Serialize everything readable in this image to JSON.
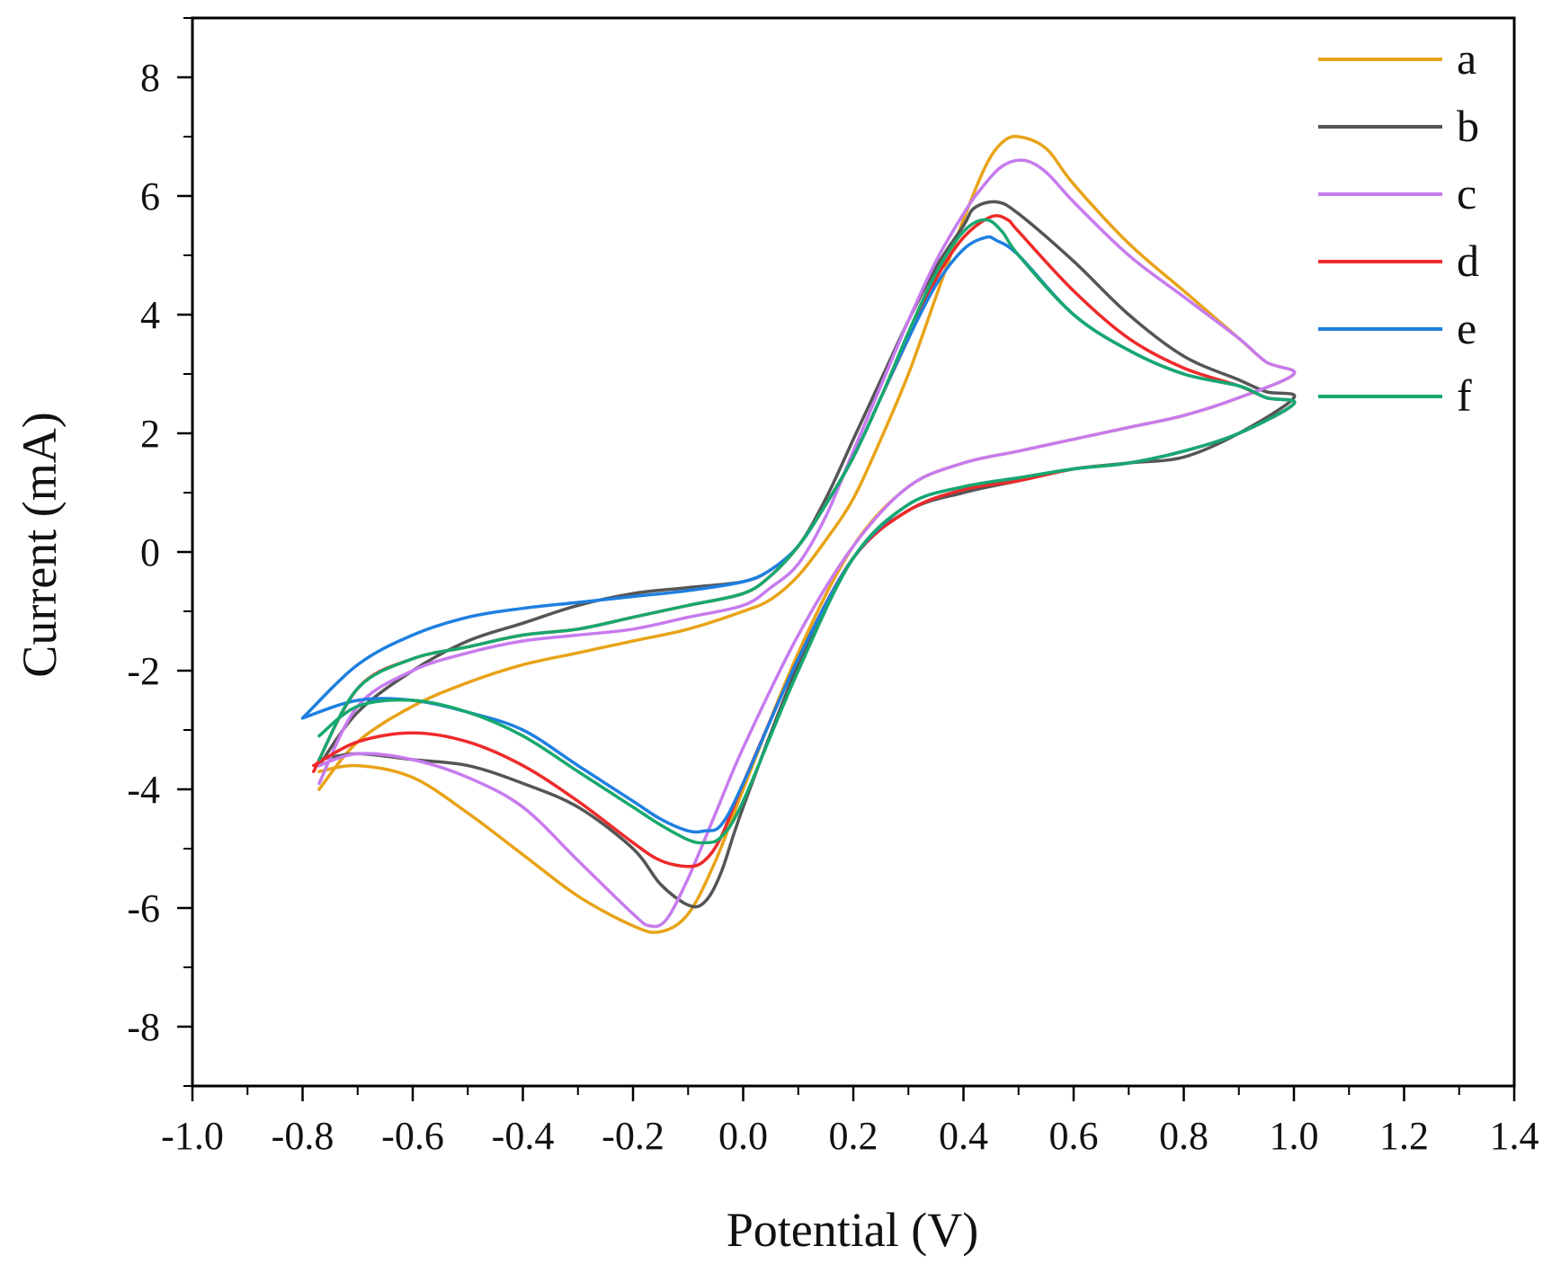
{
  "chart_data": {
    "type": "line",
    "title": "",
    "xlabel": "Potential (V)",
    "ylabel": "Current (mA)",
    "xlim": [
      -1.0,
      1.4
    ],
    "ylim": [
      -9.0,
      9.0
    ],
    "x_ticks": [
      -1.0,
      -0.8,
      -0.6,
      -0.4,
      -0.2,
      0.0,
      0.2,
      0.4,
      0.6,
      0.8,
      1.0,
      1.2,
      1.4
    ],
    "x_tick_labels": [
      "-1.0",
      "-0.8",
      "-0.6",
      "-0.4",
      "-0.2",
      "0.0",
      "0.2",
      "0.4",
      "0.6",
      "0.8",
      "1.0",
      "1.2",
      "1.4"
    ],
    "y_ticks": [
      -8,
      -6,
      -4,
      -2,
      0,
      2,
      4,
      6,
      8
    ],
    "y_tick_labels": [
      "-8",
      "-6",
      "-4",
      "-2",
      "0",
      "2",
      "4",
      "6",
      "8"
    ],
    "grid": false,
    "legend_position": "top-right",
    "series": [
      {
        "name": "a",
        "color": "#E8A317",
        "x": [
          -0.77,
          -0.7,
          -0.6,
          -0.5,
          -0.4,
          -0.3,
          -0.2,
          -0.15,
          -0.1,
          -0.05,
          0.0,
          0.1,
          0.2,
          0.3,
          0.4,
          0.5,
          0.6,
          0.7,
          0.8,
          0.9,
          1.0,
          0.95,
          0.9,
          0.8,
          0.7,
          0.6,
          0.55,
          0.5,
          0.47,
          0.44,
          0.4,
          0.35,
          0.3,
          0.25,
          0.2,
          0.15,
          0.1,
          0.05,
          0.0,
          -0.1,
          -0.2,
          -0.3,
          -0.4,
          -0.5,
          -0.6,
          -0.7,
          -0.77
        ],
        "y": [
          -3.7,
          -3.6,
          -3.8,
          -4.4,
          -5.1,
          -5.8,
          -6.3,
          -6.4,
          -6.1,
          -5.2,
          -4.0,
          -1.7,
          0.1,
          1.1,
          1.5,
          1.7,
          1.9,
          2.1,
          2.3,
          2.6,
          3.0,
          3.2,
          3.6,
          4.4,
          5.2,
          6.2,
          6.8,
          7.0,
          6.9,
          6.5,
          5.6,
          4.3,
          3.0,
          1.9,
          0.9,
          0.2,
          -0.4,
          -0.8,
          -1.0,
          -1.3,
          -1.5,
          -1.7,
          -1.9,
          -2.2,
          -2.6,
          -3.2,
          -4.0
        ]
      },
      {
        "name": "b",
        "color": "#555555",
        "x": [
          -0.77,
          -0.7,
          -0.6,
          -0.5,
          -0.4,
          -0.3,
          -0.2,
          -0.15,
          -0.1,
          -0.07,
          -0.04,
          0.0,
          0.1,
          0.2,
          0.3,
          0.4,
          0.5,
          0.6,
          0.7,
          0.8,
          0.9,
          1.0,
          0.95,
          0.9,
          0.8,
          0.7,
          0.6,
          0.5,
          0.46,
          0.42,
          0.4,
          0.35,
          0.3,
          0.25,
          0.2,
          0.15,
          0.1,
          0.05,
          0.0,
          -0.1,
          -0.2,
          -0.3,
          -0.4,
          -0.5,
          -0.6,
          -0.7,
          -0.77
        ],
        "y": [
          -3.5,
          -3.4,
          -3.5,
          -3.6,
          -3.9,
          -4.3,
          -5.0,
          -5.6,
          -5.95,
          -5.9,
          -5.4,
          -4.3,
          -1.9,
          -0.1,
          0.7,
          1.0,
          1.2,
          1.4,
          1.5,
          1.6,
          2.0,
          2.6,
          2.7,
          2.9,
          3.3,
          4.0,
          4.9,
          5.7,
          5.9,
          5.8,
          5.5,
          4.8,
          3.9,
          2.9,
          1.9,
          0.9,
          0.1,
          -0.3,
          -0.5,
          -0.6,
          -0.7,
          -0.9,
          -1.2,
          -1.5,
          -2.0,
          -2.7,
          -3.6
        ]
      },
      {
        "name": "c",
        "color": "#C77BEE",
        "x": [
          -0.77,
          -0.7,
          -0.6,
          -0.5,
          -0.4,
          -0.3,
          -0.2,
          -0.17,
          -0.14,
          -0.1,
          -0.05,
          0.0,
          0.1,
          0.2,
          0.3,
          0.4,
          0.5,
          0.6,
          0.7,
          0.8,
          0.9,
          1.0,
          0.95,
          0.9,
          0.8,
          0.7,
          0.6,
          0.55,
          0.51,
          0.47,
          0.43,
          0.4,
          0.35,
          0.3,
          0.25,
          0.2,
          0.15,
          0.1,
          0.05,
          0.0,
          -0.1,
          -0.2,
          -0.3,
          -0.4,
          -0.5,
          -0.6,
          -0.7,
          -0.77
        ],
        "y": [
          -3.6,
          -3.4,
          -3.5,
          -3.8,
          -4.3,
          -5.2,
          -6.1,
          -6.3,
          -6.2,
          -5.5,
          -4.4,
          -3.3,
          -1.4,
          0.1,
          1.1,
          1.5,
          1.7,
          1.9,
          2.1,
          2.3,
          2.6,
          3.0,
          3.2,
          3.6,
          4.3,
          5.0,
          5.9,
          6.4,
          6.6,
          6.5,
          6.1,
          5.7,
          4.9,
          3.9,
          2.8,
          1.7,
          0.6,
          -0.2,
          -0.6,
          -0.9,
          -1.1,
          -1.3,
          -1.4,
          -1.5,
          -1.7,
          -2.0,
          -2.6,
          -3.9
        ]
      },
      {
        "name": "d",
        "color": "#EE2A2A",
        "x": [
          -0.78,
          -0.7,
          -0.6,
          -0.5,
          -0.4,
          -0.3,
          -0.2,
          -0.15,
          -0.1,
          -0.07,
          -0.04,
          0.0,
          0.1,
          0.2,
          0.3,
          0.4,
          0.5,
          0.6,
          0.7,
          0.8,
          0.9,
          1.0,
          0.95,
          0.9,
          0.8,
          0.7,
          0.6,
          0.5,
          0.48,
          0.45,
          0.4,
          0.35,
          0.3,
          0.25,
          0.2,
          0.15,
          0.1,
          0.05,
          0.0,
          -0.1,
          -0.2,
          -0.3,
          -0.4,
          -0.5,
          -0.6,
          -0.7,
          -0.78
        ],
        "y": [
          -3.6,
          -3.2,
          -3.05,
          -3.2,
          -3.6,
          -4.2,
          -4.9,
          -5.2,
          -5.3,
          -5.2,
          -4.8,
          -3.9,
          -1.8,
          -0.1,
          0.7,
          1.05,
          1.2,
          1.4,
          1.5,
          1.7,
          2.0,
          2.5,
          2.6,
          2.8,
          3.1,
          3.6,
          4.4,
          5.4,
          5.6,
          5.65,
          5.3,
          4.6,
          3.6,
          2.6,
          1.6,
          0.8,
          0.1,
          -0.4,
          -0.7,
          -0.9,
          -1.1,
          -1.3,
          -1.4,
          -1.6,
          -1.8,
          -2.3,
          -3.7
        ]
      },
      {
        "name": "e",
        "color": "#1E7FE0",
        "x": [
          -0.8,
          -0.7,
          -0.6,
          -0.5,
          -0.4,
          -0.3,
          -0.2,
          -0.15,
          -0.1,
          -0.07,
          -0.04,
          0.0,
          0.1,
          0.2,
          0.3,
          0.4,
          0.5,
          0.6,
          0.7,
          0.8,
          0.9,
          1.0,
          0.95,
          0.9,
          0.8,
          0.7,
          0.6,
          0.5,
          0.46,
          0.44,
          0.4,
          0.35,
          0.3,
          0.25,
          0.2,
          0.15,
          0.1,
          0.05,
          0.0,
          -0.1,
          -0.2,
          -0.3,
          -0.4,
          -0.5,
          -0.6,
          -0.7,
          -0.8
        ],
        "y": [
          -2.8,
          -2.5,
          -2.5,
          -2.7,
          -3.0,
          -3.6,
          -4.2,
          -4.5,
          -4.7,
          -4.7,
          -4.6,
          -3.9,
          -1.8,
          -0.1,
          0.8,
          1.1,
          1.25,
          1.4,
          1.5,
          1.7,
          2.0,
          2.5,
          2.6,
          2.8,
          3.0,
          3.4,
          4.0,
          5.0,
          5.25,
          5.3,
          5.1,
          4.5,
          3.6,
          2.6,
          1.6,
          0.8,
          0.1,
          -0.3,
          -0.5,
          -0.65,
          -0.75,
          -0.85,
          -0.95,
          -1.1,
          -1.4,
          -1.9,
          -2.8
        ]
      },
      {
        "name": "f",
        "color": "#17A86E",
        "x": [
          -0.77,
          -0.7,
          -0.6,
          -0.5,
          -0.4,
          -0.3,
          -0.2,
          -0.15,
          -0.1,
          -0.07,
          -0.04,
          0.0,
          0.1,
          0.2,
          0.3,
          0.4,
          0.5,
          0.6,
          0.7,
          0.8,
          0.9,
          1.0,
          0.95,
          0.9,
          0.8,
          0.7,
          0.6,
          0.5,
          0.47,
          0.44,
          0.4,
          0.35,
          0.3,
          0.25,
          0.2,
          0.15,
          0.1,
          0.05,
          0.0,
          -0.1,
          -0.2,
          -0.3,
          -0.4,
          -0.5,
          -0.6,
          -0.7,
          -0.77
        ],
        "y": [
          -3.1,
          -2.6,
          -2.5,
          -2.7,
          -3.1,
          -3.7,
          -4.3,
          -4.6,
          -4.85,
          -4.9,
          -4.8,
          -4.2,
          -2.0,
          -0.1,
          0.8,
          1.1,
          1.25,
          1.4,
          1.5,
          1.7,
          2.0,
          2.5,
          2.6,
          2.8,
          3.0,
          3.4,
          4.0,
          5.0,
          5.4,
          5.6,
          5.4,
          4.7,
          3.7,
          2.6,
          1.6,
          0.8,
          0.1,
          -0.4,
          -0.7,
          -0.9,
          -1.1,
          -1.3,
          -1.4,
          -1.6,
          -1.8,
          -2.3,
          -3.5
        ]
      }
    ]
  }
}
